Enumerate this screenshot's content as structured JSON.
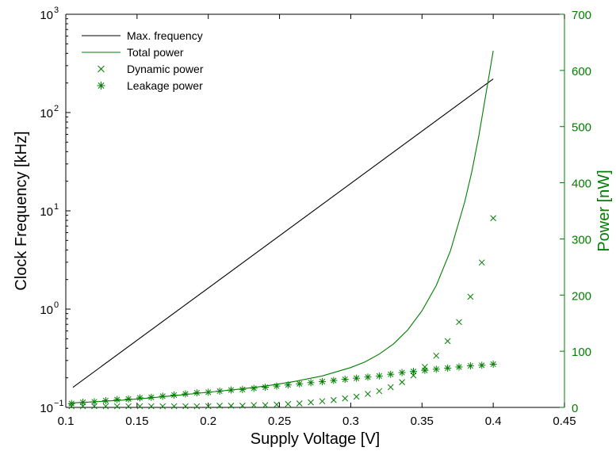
{
  "chart_data": {
    "type": "line",
    "xlabel": "Supply Voltage [V]",
    "ylabel_left": "Clock Frequency [kHz]",
    "ylabel_right": "Power [nW]",
    "x_ticks": [
      "0.1",
      "0.15",
      "0.2",
      "0.25",
      "0.3",
      "0.35",
      "0.4",
      "0.45"
    ],
    "y_left_ticks": [
      {
        "base": "10",
        "exp": "−1"
      },
      {
        "base": "10",
        "exp": "0"
      },
      {
        "base": "10",
        "exp": "1"
      },
      {
        "base": "10",
        "exp": "2"
      },
      {
        "base": "10",
        "exp": "3"
      }
    ],
    "y_right_ticks": [
      "0",
      "100",
      "200",
      "300",
      "400",
      "500",
      "600",
      "700"
    ],
    "xlim": [
      0.1,
      0.45
    ],
    "ylim_left": [
      0.1,
      1000
    ],
    "y_left_scale": "log",
    "ylim_right": [
      0,
      700
    ],
    "legend_position": "top-left",
    "colors": {
      "frequency": "#000000",
      "power": "#007f00"
    },
    "series": [
      {
        "name": "Max. frequency",
        "axis": "left",
        "style": "line",
        "x": [
          0.105,
          0.4
        ],
        "y": [
          0.16,
          220
        ]
      },
      {
        "name": "Total power",
        "axis": "right",
        "style": "line",
        "x": [
          0.105,
          0.12,
          0.14,
          0.16,
          0.18,
          0.2,
          0.22,
          0.24,
          0.26,
          0.28,
          0.3,
          0.31,
          0.32,
          0.33,
          0.34,
          0.35,
          0.36,
          0.37,
          0.38,
          0.385,
          0.39,
          0.395,
          0.4
        ],
        "y": [
          8,
          10,
          13,
          17,
          22,
          27,
          32,
          38,
          46,
          56,
          71,
          81,
          95,
          113,
          138,
          172,
          217,
          279,
          366,
          420,
          485,
          560,
          635
        ]
      },
      {
        "name": "Dynamic power",
        "axis": "right",
        "style": "x-marker",
        "x": [
          0.104,
          0.112,
          0.12,
          0.128,
          0.136,
          0.144,
          0.152,
          0.16,
          0.168,
          0.176,
          0.184,
          0.192,
          0.2,
          0.208,
          0.216,
          0.224,
          0.232,
          0.24,
          0.248,
          0.256,
          0.264,
          0.272,
          0.28,
          0.288,
          0.296,
          0.304,
          0.312,
          0.32,
          0.328,
          0.336,
          0.344,
          0.352,
          0.36,
          0.368,
          0.376,
          0.384,
          0.392,
          0.4
        ],
        "y": [
          2,
          2,
          2,
          2,
          2,
          2,
          2,
          2,
          2,
          2,
          2,
          2,
          2,
          3,
          3,
          3,
          4,
          4,
          5,
          6,
          7,
          9,
          11,
          13,
          16,
          19,
          24,
          29,
          36,
          45,
          57,
          72,
          92,
          118,
          152,
          197,
          258,
          337
        ]
      },
      {
        "name": "Leakage power",
        "axis": "right",
        "style": "star-marker",
        "x": [
          0.104,
          0.112,
          0.12,
          0.128,
          0.136,
          0.144,
          0.152,
          0.16,
          0.168,
          0.176,
          0.184,
          0.192,
          0.2,
          0.208,
          0.216,
          0.224,
          0.232,
          0.24,
          0.248,
          0.256,
          0.264,
          0.272,
          0.28,
          0.288,
          0.296,
          0.304,
          0.312,
          0.32,
          0.328,
          0.336,
          0.344,
          0.352,
          0.36,
          0.368,
          0.376,
          0.384,
          0.392,
          0.4
        ],
        "y": [
          7,
          9,
          10,
          12,
          14,
          15,
          17,
          18,
          20,
          22,
          24,
          26,
          27,
          29,
          31,
          32,
          34,
          36,
          38,
          40,
          42,
          44,
          46,
          48,
          50,
          52,
          54,
          56,
          59,
          62,
          64,
          66,
          68,
          70,
          72,
          74,
          75,
          77
        ]
      }
    ]
  }
}
